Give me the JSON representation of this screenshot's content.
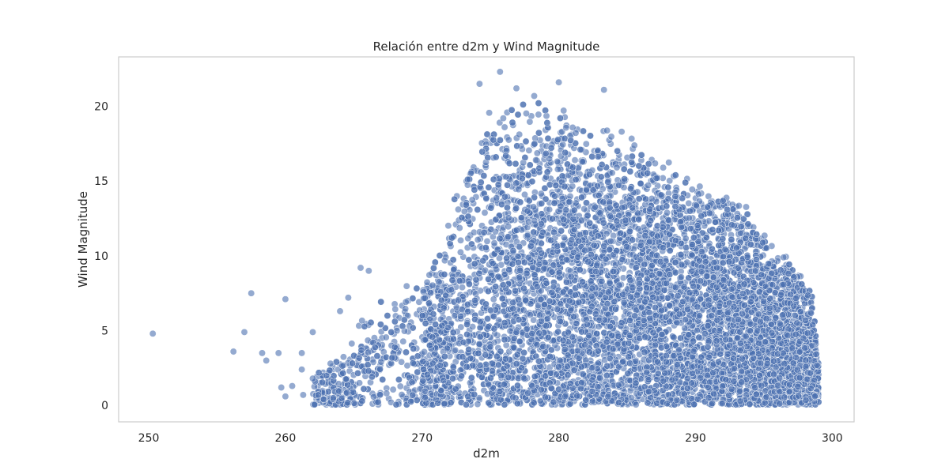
{
  "chart_data": {
    "type": "scatter",
    "title": "Relación entre d2m y Wind Magnitude",
    "xlabel": "d2m",
    "ylabel": "Wind Magnitude",
    "xlim": [
      247.8,
      301.6
    ],
    "ylim": [
      -1.1,
      23.3
    ],
    "x_ticks": [
      250,
      260,
      270,
      280,
      290,
      300
    ],
    "y_ticks": [
      0,
      5,
      10,
      15,
      20
    ],
    "grid": false,
    "legend": "none",
    "point_color": "#4c72b0",
    "point_opacity": 0.6,
    "point_edge_color": "#ffffff",
    "outliers": [
      {
        "x": 250.3,
        "y": 4.8
      },
      {
        "x": 256.2,
        "y": 3.6
      },
      {
        "x": 257.0,
        "y": 4.9
      },
      {
        "x": 257.5,
        "y": 7.5
      },
      {
        "x": 258.3,
        "y": 3.5
      },
      {
        "x": 258.6,
        "y": 3.0
      },
      {
        "x": 259.5,
        "y": 3.5
      },
      {
        "x": 259.7,
        "y": 1.2
      },
      {
        "x": 260.0,
        "y": 0.6
      },
      {
        "x": 260.0,
        "y": 7.1
      },
      {
        "x": 260.5,
        "y": 1.3
      },
      {
        "x": 261.2,
        "y": 3.5
      },
      {
        "x": 261.2,
        "y": 2.4
      },
      {
        "x": 261.3,
        "y": 0.7
      },
      {
        "x": 262.0,
        "y": 4.9
      },
      {
        "x": 262.0,
        "y": 1.8
      },
      {
        "x": 262.8,
        "y": 0.4
      },
      {
        "x": 263.3,
        "y": 2.8
      },
      {
        "x": 263.5,
        "y": 0.5
      },
      {
        "x": 264.0,
        "y": 6.3
      },
      {
        "x": 264.6,
        "y": 7.2
      },
      {
        "x": 265.5,
        "y": 9.2
      },
      {
        "x": 266.1,
        "y": 9.0
      },
      {
        "x": 275.7,
        "y": 22.3
      },
      {
        "x": 274.2,
        "y": 21.5
      },
      {
        "x": 280.0,
        "y": 21.6
      },
      {
        "x": 283.3,
        "y": 21.1
      },
      {
        "x": 276.9,
        "y": 21.2
      }
    ],
    "cloud_shape": {
      "description": "dense cloud of points between d2m 262 and 299, wind magnitude 0 to 22",
      "upper_envelope": [
        [
          262,
          2.0
        ],
        [
          264,
          3.5
        ],
        [
          266,
          6.5
        ],
        [
          268,
          8.0
        ],
        [
          270,
          9.5
        ],
        [
          272,
          12.5
        ],
        [
          273,
          16.5
        ],
        [
          274,
          19.5
        ],
        [
          276,
          21.0
        ],
        [
          278,
          21.2
        ],
        [
          280,
          21.0
        ],
        [
          282,
          20.0
        ],
        [
          284,
          19.5
        ],
        [
          286,
          18.5
        ],
        [
          288,
          17.0
        ],
        [
          290,
          16.0
        ],
        [
          292,
          15.0
        ],
        [
          294,
          13.5
        ],
        [
          296,
          11.0
        ],
        [
          297.5,
          9.5
        ],
        [
          298.5,
          8.0
        ],
        [
          299,
          3.0
        ]
      ],
      "n_points": 9000
    }
  }
}
